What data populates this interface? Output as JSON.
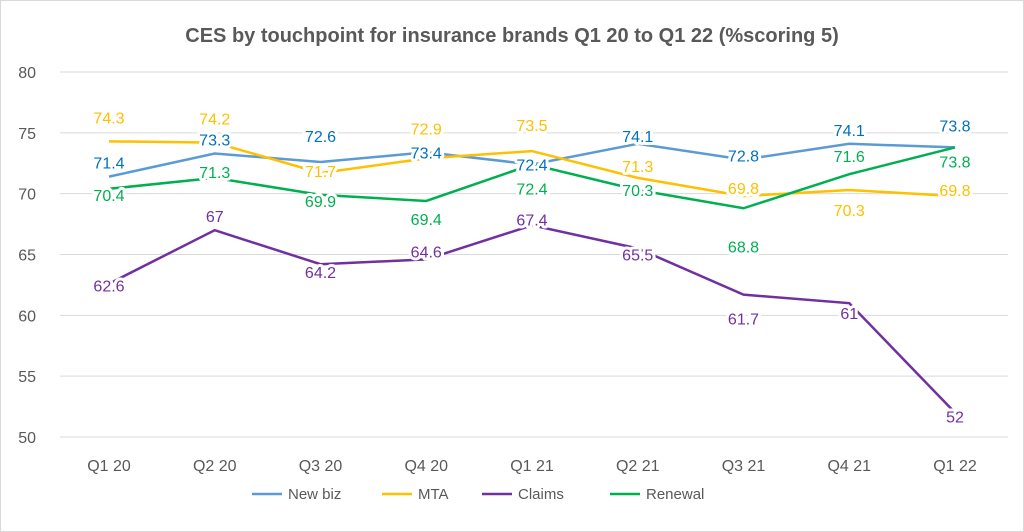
{
  "chart_data": {
    "type": "line",
    "title": "CES by touchpoint for insurance brands Q1 20 to Q1 22 (%scoring 5)",
    "categories": [
      "Q1 20",
      "Q2 20",
      "Q3 20",
      "Q4 20",
      "Q1 21",
      "Q2 21",
      "Q3 21",
      "Q4 21",
      "Q1 22"
    ],
    "ylim": [
      50,
      80
    ],
    "yticks": [
      50,
      55,
      60,
      65,
      70,
      75,
      80
    ],
    "grid": true,
    "legend": "bottom",
    "series": [
      {
        "name": "New biz",
        "color": "#5b9bd5",
        "label_color": "#0070c0",
        "values": [
          71.4,
          73.3,
          72.6,
          73.4,
          72.4,
          74.1,
          72.8,
          74.1,
          73.8
        ]
      },
      {
        "name": "MTA",
        "color": "#ffc000",
        "label_color": "#ffc000",
        "values": [
          74.3,
          74.2,
          71.7,
          72.9,
          73.5,
          71.3,
          69.8,
          70.3,
          69.8
        ]
      },
      {
        "name": "Claims",
        "color": "#7030a0",
        "label_color": "#7030a0",
        "values": [
          62.6,
          67,
          64.2,
          64.6,
          67.4,
          65.5,
          61.7,
          61,
          52
        ]
      },
      {
        "name": "Renewal",
        "color": "#00b050",
        "label_color": "#00b050",
        "values": [
          70.4,
          71.3,
          69.9,
          69.4,
          72.4,
          70.3,
          68.8,
          71.6,
          73.8
        ]
      }
    ]
  }
}
